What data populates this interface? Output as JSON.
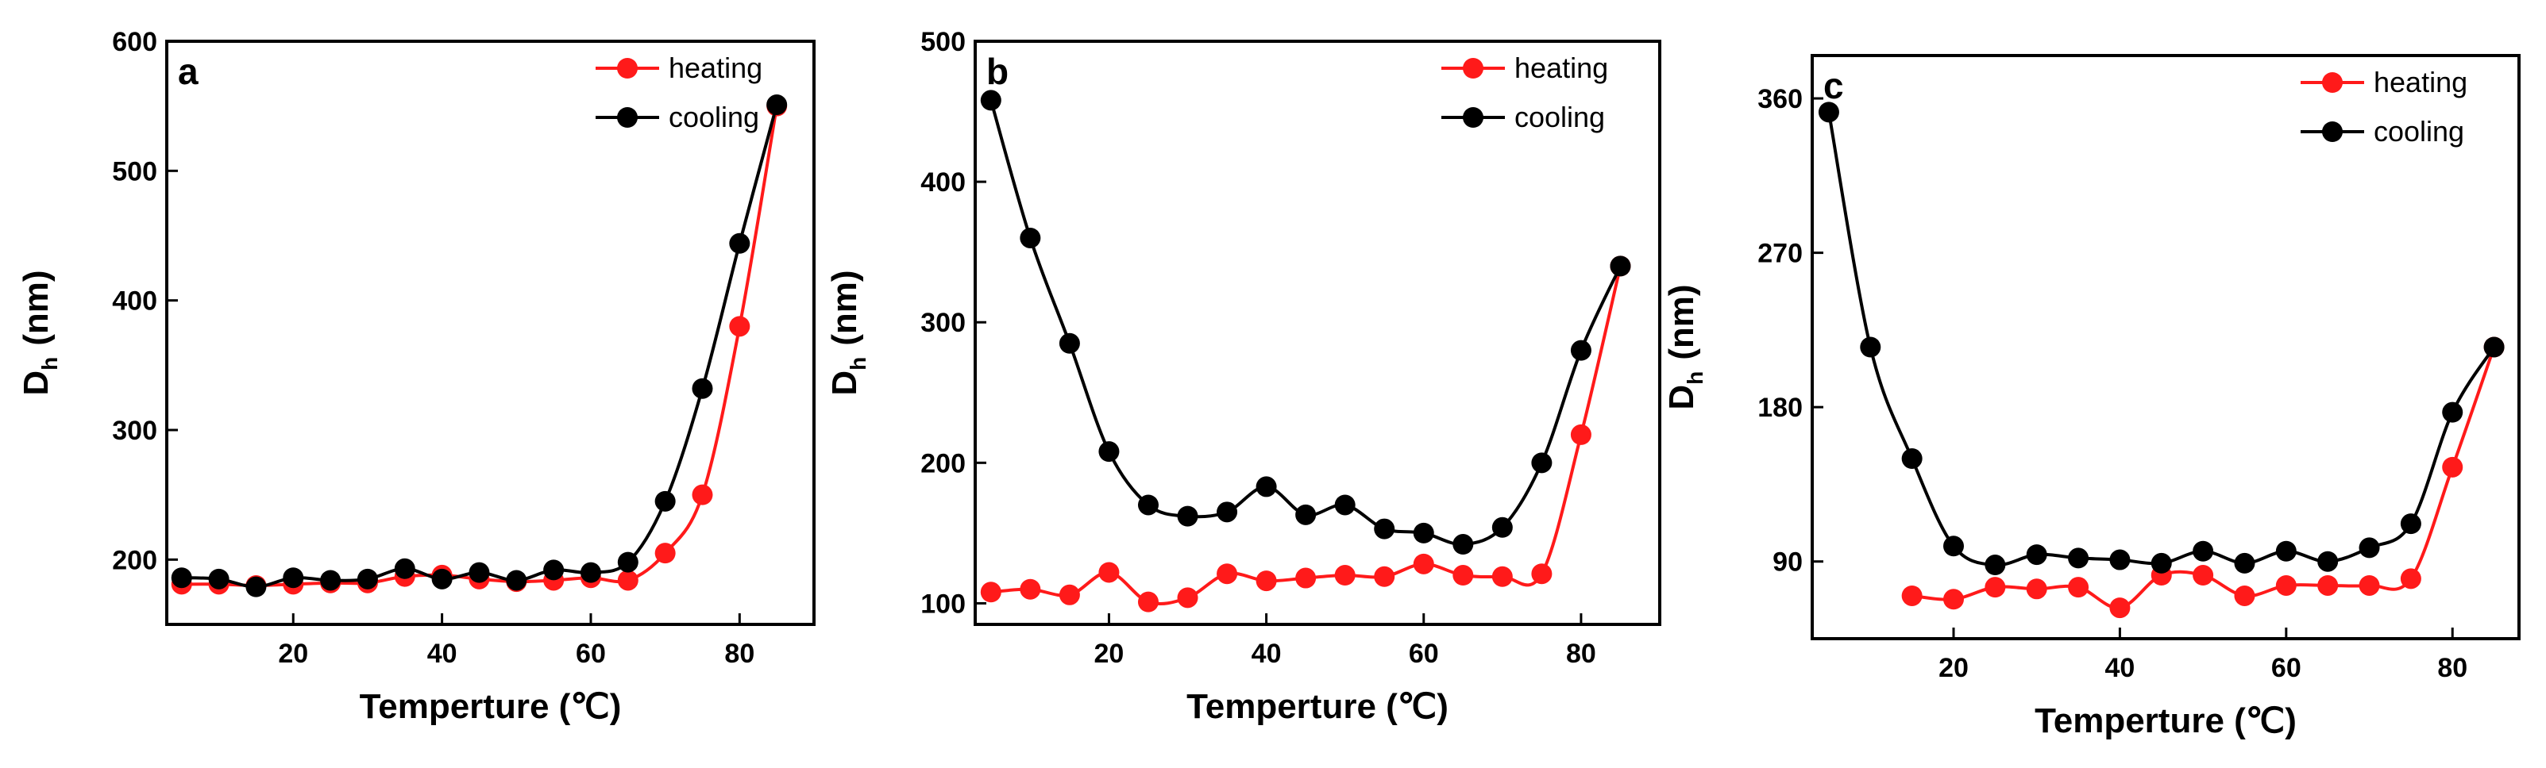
{
  "chart_data": [
    {
      "panel": "a",
      "type": "line",
      "xlabel": "Temperture (℃)",
      "ylabel_main": "D",
      "ylabel_sub": "h",
      "ylabel_unit": "(nm)",
      "xlim": [
        3,
        90
      ],
      "ylim": [
        150,
        600
      ],
      "xticks": [
        20,
        40,
        60,
        80
      ],
      "yticks": [
        200,
        300,
        400,
        500,
        600
      ],
      "legend": "top-right",
      "series": [
        {
          "name": "heating",
          "color": "#ff1a1a",
          "x": [
            5,
            10,
            15,
            20,
            25,
            30,
            35,
            40,
            45,
            50,
            55,
            60,
            65,
            70,
            75,
            80,
            85
          ],
          "y": [
            181,
            181,
            180,
            181,
            182,
            182,
            187,
            188,
            185,
            183,
            184,
            186,
            184,
            205,
            250,
            380,
            550
          ]
        },
        {
          "name": "cooling",
          "color": "#000000",
          "x": [
            5,
            10,
            15,
            20,
            25,
            30,
            35,
            40,
            45,
            50,
            55,
            60,
            65,
            70,
            75,
            80,
            85
          ],
          "y": [
            186,
            185,
            179,
            186,
            184,
            185,
            193,
            185,
            190,
            184,
            192,
            190,
            198,
            245,
            332,
            444,
            551
          ]
        }
      ]
    },
    {
      "panel": "b",
      "type": "line",
      "xlabel": "Temperture (℃)",
      "ylabel_main": "D",
      "ylabel_sub": "h",
      "ylabel_unit": "(nm)",
      "xlim": [
        3,
        90
      ],
      "ylim": [
        85,
        500
      ],
      "xticks": [
        20,
        40,
        60,
        80
      ],
      "yticks": [
        100,
        200,
        300,
        400,
        500
      ],
      "legend": "top-right",
      "series": [
        {
          "name": "heating",
          "color": "#ff1a1a",
          "x": [
            5,
            10,
            15,
            20,
            25,
            30,
            35,
            40,
            45,
            50,
            55,
            60,
            65,
            70,
            75,
            80,
            85
          ],
          "y": [
            108,
            110,
            106,
            122,
            101,
            104,
            121,
            116,
            118,
            120,
            119,
            128,
            120,
            119,
            121,
            220,
            340
          ]
        },
        {
          "name": "cooling",
          "color": "#000000",
          "x": [
            5,
            10,
            15,
            20,
            25,
            30,
            35,
            40,
            45,
            50,
            55,
            60,
            65,
            70,
            75,
            80,
            85
          ],
          "y": [
            458,
            360,
            285,
            208,
            170,
            162,
            165,
            183,
            163,
            170,
            153,
            150,
            142,
            154,
            200,
            280,
            340
          ]
        }
      ]
    },
    {
      "panel": "c",
      "type": "line",
      "xlabel": "Temperture (℃)",
      "ylabel_main": "D",
      "ylabel_sub": "h",
      "ylabel_unit": "(nm)",
      "xlim": [
        3,
        88
      ],
      "ylim": [
        45,
        385
      ],
      "xticks": [
        20,
        40,
        60,
        80
      ],
      "yticks": [
        90,
        180,
        270,
        360
      ],
      "legend": "top-right",
      "series": [
        {
          "name": "heating",
          "color": "#ff1a1a",
          "x": [
            15,
            20,
            25,
            30,
            35,
            40,
            45,
            50,
            55,
            60,
            65,
            70,
            75,
            80,
            85
          ],
          "y": [
            70,
            68,
            75,
            74,
            75,
            63,
            82,
            82,
            70,
            76,
            76,
            76,
            80,
            145,
            215
          ]
        },
        {
          "name": "cooling",
          "color": "#000000",
          "x": [
            5,
            10,
            15,
            20,
            25,
            30,
            35,
            40,
            45,
            50,
            55,
            60,
            65,
            70,
            75,
            80,
            85
          ],
          "y": [
            352,
            215,
            150,
            99,
            88,
            94,
            92,
            91,
            89,
            96,
            89,
            96,
            90,
            98,
            112,
            177,
            215
          ]
        }
      ]
    }
  ]
}
